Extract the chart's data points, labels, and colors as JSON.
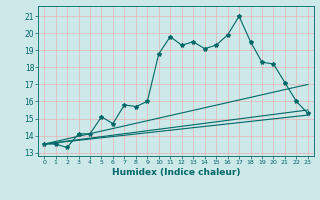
{
  "title": "",
  "xlabel": "Humidex (Indice chaleur)",
  "bg_color": "#cce8e8",
  "grid_color": "#e8b4b4",
  "line_color": "#006868",
  "xlim": [
    -0.5,
    23.5
  ],
  "ylim": [
    12.8,
    21.6
  ],
  "yticks": [
    13,
    14,
    15,
    16,
    17,
    18,
    19,
    20,
    21
  ],
  "xticks": [
    0,
    1,
    2,
    3,
    4,
    5,
    6,
    7,
    8,
    9,
    10,
    11,
    12,
    13,
    14,
    15,
    16,
    17,
    18,
    19,
    20,
    21,
    22,
    23
  ],
  "main_line_x": [
    0,
    1,
    2,
    3,
    4,
    5,
    6,
    7,
    8,
    9,
    10,
    11,
    12,
    13,
    14,
    15,
    16,
    17,
    18,
    19,
    20,
    21,
    22,
    23
  ],
  "main_line_y": [
    13.5,
    13.5,
    13.3,
    14.1,
    14.1,
    15.1,
    14.7,
    15.8,
    15.7,
    16.0,
    18.8,
    19.8,
    19.3,
    19.5,
    19.1,
    19.3,
    19.9,
    21.0,
    19.5,
    18.3,
    18.2,
    17.1,
    16.0,
    15.3
  ],
  "line2_x": [
    0,
    23
  ],
  "line2_y": [
    13.5,
    17.0
  ],
  "line3_x": [
    0,
    23
  ],
  "line3_y": [
    13.5,
    15.5
  ],
  "line4_x": [
    0,
    23
  ],
  "line4_y": [
    13.5,
    15.2
  ]
}
